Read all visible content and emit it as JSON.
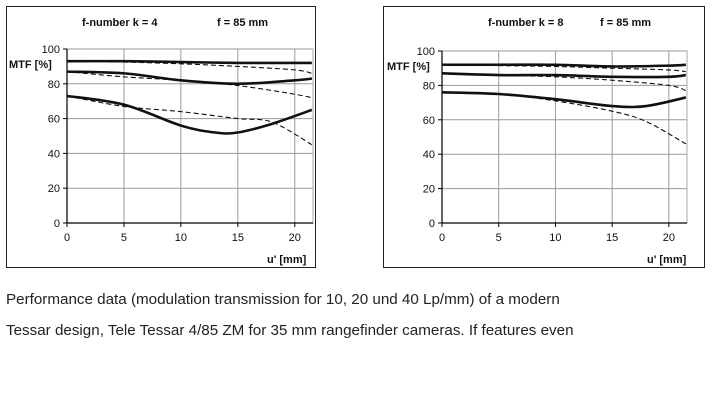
{
  "caption": {
    "line1": "Performance data (modulation transmission for 10, 20 und 40 Lp/mm) of a modern",
    "line2": "Tessar design, Tele Tessar 4/85 ZM for 35 mm rangefinder cameras. If features even"
  },
  "chart_data": [
    {
      "type": "line",
      "header": {
        "fnumber": "f-number   k = 4",
        "focal": "f = 85 mm"
      },
      "ylabel": "MTF [%]",
      "xlabel": "u' [mm]",
      "xlim": [
        0,
        21.6
      ],
      "ylim": [
        0,
        100
      ],
      "xticks": [
        0,
        5,
        10,
        15,
        20
      ],
      "yticks": [
        0,
        20,
        40,
        60,
        80,
        100
      ],
      "grid": true,
      "series": [
        {
          "style": "solid",
          "points": [
            [
              0,
              93
            ],
            [
              5,
              93
            ],
            [
              10,
              92.5
            ],
            [
              15,
              92
            ],
            [
              20,
              92
            ],
            [
              21.5,
              92
            ]
          ]
        },
        {
          "style": "dashed",
          "points": [
            [
              0,
              93
            ],
            [
              5,
              92.5
            ],
            [
              10,
              91.5
            ],
            [
              15,
              90
            ],
            [
              20,
              88
            ],
            [
              21.5,
              86
            ]
          ]
        },
        {
          "style": "solid",
          "points": [
            [
              0,
              87
            ],
            [
              5,
              86
            ],
            [
              10,
              82
            ],
            [
              15,
              80
            ],
            [
              20,
              82
            ],
            [
              21.5,
              83
            ]
          ]
        },
        {
          "style": "dashed",
          "points": [
            [
              0,
              87
            ],
            [
              5,
              84
            ],
            [
              10,
              82
            ],
            [
              15,
              79
            ],
            [
              20,
              74
            ],
            [
              21.5,
              72
            ]
          ]
        },
        {
          "style": "solid",
          "points": [
            [
              0,
              73
            ],
            [
              5,
              68
            ],
            [
              10,
              56
            ],
            [
              13,
              52
            ],
            [
              15,
              52
            ],
            [
              18,
              57
            ],
            [
              21.5,
              65
            ]
          ]
        },
        {
          "style": "dashed",
          "points": [
            [
              0,
              73
            ],
            [
              5,
              67
            ],
            [
              10,
              64
            ],
            [
              15,
              60
            ],
            [
              18,
              58
            ],
            [
              21.5,
              45
            ]
          ]
        }
      ]
    },
    {
      "type": "line",
      "header": {
        "fnumber": "f-number   k = 8",
        "focal": "f = 85 mm"
      },
      "ylabel": "MTF [%]",
      "xlabel": "u' [mm]",
      "xlim": [
        0,
        21.6
      ],
      "ylim": [
        0,
        100
      ],
      "xticks": [
        0,
        5,
        10,
        15,
        20
      ],
      "yticks": [
        0,
        20,
        40,
        60,
        80,
        100
      ],
      "grid": true,
      "series": [
        {
          "style": "solid",
          "points": [
            [
              0,
              92
            ],
            [
              5,
              92
            ],
            [
              10,
              92
            ],
            [
              15,
              91
            ],
            [
              20,
              91.5
            ],
            [
              21.5,
              92
            ]
          ]
        },
        {
          "style": "dashed",
          "points": [
            [
              0,
              92
            ],
            [
              5,
              91.5
            ],
            [
              10,
              91
            ],
            [
              15,
              90
            ],
            [
              20,
              89
            ],
            [
              21.5,
              88
            ]
          ]
        },
        {
          "style": "solid",
          "points": [
            [
              0,
              87
            ],
            [
              5,
              86
            ],
            [
              10,
              86
            ],
            [
              15,
              85
            ],
            [
              20,
              85
            ],
            [
              21.5,
              86
            ]
          ]
        },
        {
          "style": "dashed",
          "points": [
            [
              0,
              87
            ],
            [
              5,
              86
            ],
            [
              10,
              85
            ],
            [
              15,
              83
            ],
            [
              20,
              80
            ],
            [
              21.5,
              77
            ]
          ]
        },
        {
          "style": "solid",
          "points": [
            [
              0,
              76
            ],
            [
              5,
              75
            ],
            [
              10,
              72
            ],
            [
              15,
              68
            ],
            [
              18,
              68
            ],
            [
              21.5,
              73
            ]
          ]
        },
        {
          "style": "dashed",
          "points": [
            [
              0,
              76
            ],
            [
              5,
              75
            ],
            [
              10,
              71
            ],
            [
              15,
              65
            ],
            [
              18,
              59
            ],
            [
              21.5,
              46
            ]
          ]
        }
      ]
    }
  ]
}
